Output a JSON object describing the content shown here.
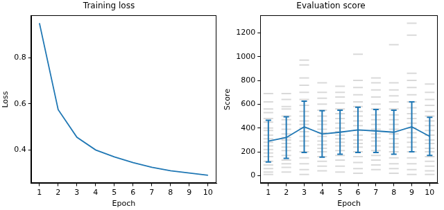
{
  "chart_data": [
    {
      "type": "line",
      "title": "Training loss",
      "x_label": "Epoch",
      "y_label": "Loss",
      "x": [
        1,
        2,
        3,
        4,
        5,
        6,
        7,
        8,
        9,
        10
      ],
      "values": [
        0.95,
        0.575,
        0.455,
        0.4,
        0.37,
        0.345,
        0.325,
        0.31,
        0.3,
        0.29
      ],
      "color": "#1f77b4",
      "xlim": [
        0.55,
        10.45
      ],
      "xticks": [
        1,
        2,
        3,
        4,
        5,
        6,
        7,
        8,
        9,
        10
      ],
      "ylim": [
        0.255,
        0.983
      ],
      "yticks": [
        0.4,
        0.6,
        0.8
      ],
      "grid": false
    },
    {
      "type": "line",
      "title": "Evaluation score",
      "x_label": "Epoch",
      "y_label": "Score",
      "x": [
        1,
        2,
        3,
        4,
        5,
        6,
        7,
        8,
        9,
        10
      ],
      "series": [
        {
          "type": "scatter",
          "marker": "dash",
          "color": "#808080",
          "values": [
            [
              690,
              620,
              560,
              530,
              480,
              450,
              400,
              380,
              340,
              310,
              280,
              250,
              220,
              190,
              160,
              120,
              90,
              60,
              30,
              10
            ],
            [
              690,
              640,
              580,
              560,
              500,
              470,
              430,
              390,
              350,
              320,
              300,
              270,
              240,
              210,
              170,
              130,
              100,
              70,
              30
            ],
            [
              970,
              930,
              820,
              760,
              700,
              640,
              590,
              540,
              500,
              460,
              430,
              400,
              370,
              330,
              290,
              250,
              200,
              150,
              100,
              50,
              10
            ],
            [
              780,
              700,
              650,
              600,
              550,
              500,
              460,
              430,
              390,
              360,
              330,
              290,
              260,
              230,
              200,
              160,
              120,
              80,
              40
            ],
            [
              750,
              700,
              660,
              610,
              560,
              520,
              480,
              440,
              400,
              370,
              340,
              310,
              280,
              250,
              210,
              170,
              130,
              80,
              30
            ],
            [
              1020,
              800,
              740,
              680,
              620,
              580,
              540,
              500,
              460,
              420,
              380,
              340,
              300,
              270,
              240,
              200,
              160,
              110,
              60,
              20
            ],
            [
              820,
              780,
              720,
              660,
              600,
              560,
              510,
              470,
              430,
              390,
              350,
              320,
              290,
              250,
              210,
              170,
              130,
              90,
              50
            ],
            [
              1100,
              780,
              720,
              670,
              620,
              560,
              510,
              470,
              430,
              390,
              350,
              310,
              270,
              240,
              200,
              150,
              100,
              60,
              20
            ],
            [
              1280,
              1180,
              860,
              800,
              740,
              680,
              620,
              570,
              520,
              480,
              440,
              400,
              360,
              320,
              280,
              240,
              200,
              150,
              100,
              50,
              10
            ],
            [
              770,
              700,
              640,
              590,
              540,
              500,
              460,
              420,
              380,
              340,
              300,
              270,
              230,
              200,
              160,
              120,
              80,
              40,
              10
            ]
          ]
        },
        {
          "type": "line",
          "color": "#1f77b4",
          "values": [
            290,
            320,
            410,
            350,
            365,
            385,
            375,
            365,
            410,
            330
          ],
          "error": [
            175,
            175,
            215,
            195,
            185,
            190,
            180,
            185,
            210,
            160
          ]
        }
      ],
      "xlim": [
        0.55,
        10.45
      ],
      "xticks": [
        1,
        2,
        3,
        4,
        5,
        6,
        7,
        8,
        9,
        10
      ],
      "ylim": [
        -65,
        1345
      ],
      "yticks": [
        0,
        200,
        400,
        600,
        800,
        1000,
        1200
      ],
      "grid": false
    }
  ]
}
